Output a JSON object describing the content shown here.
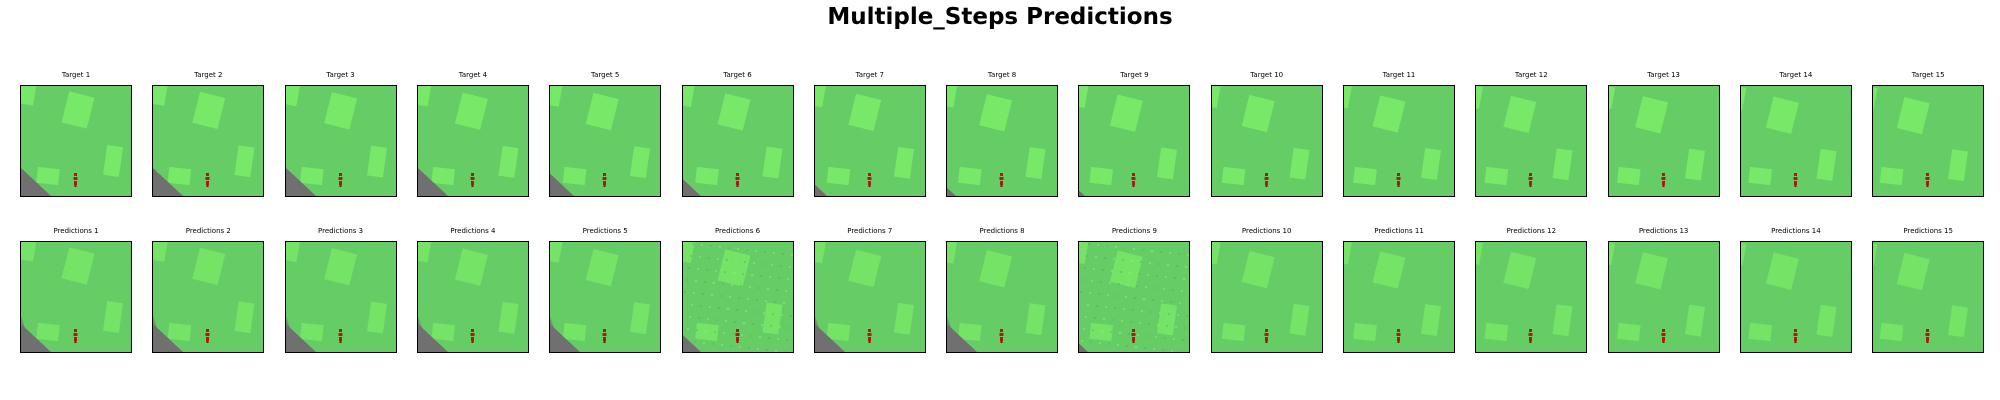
{
  "figure": {
    "title": "Multiple_Steps Predictions"
  },
  "colors": {
    "grass": "#66cc66",
    "patch": "#77e867",
    "road": "#707070",
    "agent": "#b01818"
  },
  "rows": [
    {
      "kind": "target",
      "panels": [
        {
          "label": "Target 1",
          "shift": 0,
          "road": 1,
          "noisy": 0
        },
        {
          "label": "Target 2",
          "shift": 1,
          "road": 1,
          "noisy": 0
        },
        {
          "label": "Target 3",
          "shift": 2,
          "road": 1,
          "noisy": 0
        },
        {
          "label": "Target 4",
          "shift": 3,
          "road": 1,
          "noisy": 0
        },
        {
          "label": "Target 5",
          "shift": 4,
          "road": 0.8,
          "noisy": 0
        },
        {
          "label": "Target 6",
          "shift": 5,
          "road": 0.6,
          "noisy": 0
        },
        {
          "label": "Target 7",
          "shift": 6,
          "road": 0.4,
          "noisy": 0
        },
        {
          "label": "Target 8",
          "shift": 7,
          "road": 0.3,
          "noisy": 0
        },
        {
          "label": "Target 9",
          "shift": 8,
          "road": 0.2,
          "noisy": 0
        },
        {
          "label": "Target 10",
          "shift": 9,
          "road": 0,
          "noisy": 0
        },
        {
          "label": "Target 11",
          "shift": 10,
          "road": 0,
          "noisy": 0
        },
        {
          "label": "Target 12",
          "shift": 11,
          "road": 0,
          "noisy": 0
        },
        {
          "label": "Target 13",
          "shift": 12,
          "road": 0,
          "noisy": 0
        },
        {
          "label": "Target 14",
          "shift": 13,
          "road": 0,
          "noisy": 0
        },
        {
          "label": "Target 15",
          "shift": 14,
          "road": 0,
          "noisy": 0
        }
      ]
    },
    {
      "kind": "prediction",
      "panels": [
        {
          "label": "Predictions 1",
          "shift": 0,
          "road": 1,
          "noisy": 0
        },
        {
          "label": "Predictions 2",
          "shift": 1,
          "road": 1,
          "noisy": 0
        },
        {
          "label": "Predictions 3",
          "shift": 2,
          "road": 1,
          "noisy": 0
        },
        {
          "label": "Predictions 4",
          "shift": 3,
          "road": 1,
          "noisy": 0
        },
        {
          "label": "Predictions 5",
          "shift": 4,
          "road": 1,
          "noisy": 0
        },
        {
          "label": "Predictions 6",
          "shift": 5,
          "road": 0.6,
          "noisy": 1
        },
        {
          "label": "Predictions 7",
          "shift": 6,
          "road": 1,
          "noisy": 0
        },
        {
          "label": "Predictions 8",
          "shift": 7,
          "road": 1,
          "noisy": 0
        },
        {
          "label": "Predictions 9",
          "shift": 8,
          "road": 0.3,
          "noisy": 1
        },
        {
          "label": "Predictions 10",
          "shift": 9,
          "road": 0,
          "noisy": 0
        },
        {
          "label": "Predictions 11",
          "shift": 10,
          "road": 0,
          "noisy": 0
        },
        {
          "label": "Predictions 12",
          "shift": 11,
          "road": 0,
          "noisy": 0
        },
        {
          "label": "Predictions 13",
          "shift": 12,
          "road": 0,
          "noisy": 0
        },
        {
          "label": "Predictions 14",
          "shift": 13,
          "road": 0,
          "noisy": 0
        },
        {
          "label": "Predictions 15",
          "shift": 14,
          "road": 0,
          "noisy": 0
        }
      ]
    }
  ]
}
